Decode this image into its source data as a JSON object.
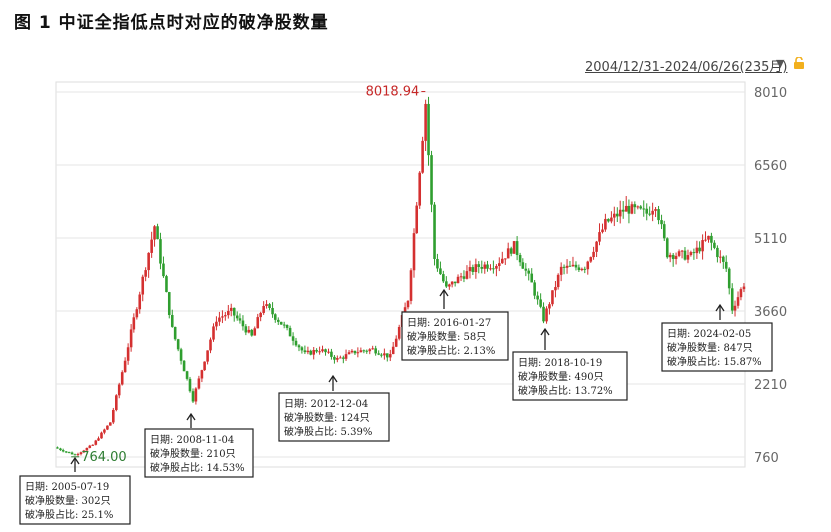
{
  "title": "图 1  中证全指低点时对应的破净股数量",
  "range_label": "2004/12/31-2024/06/26(235月)",
  "icons": {
    "dropdown": "triangle-down-icon",
    "lock": "lock-icon"
  },
  "colors": {
    "up": "#d43030",
    "down": "#2f9e2f",
    "grid": "#e6e6e6",
    "max_label": "#c62828",
    "min_label": "#2e7d32"
  },
  "chart_data": {
    "type": "candlestick",
    "title": "图 1  中证全指低点时对应的破净股数量",
    "x_range": [
      "2004-12-31",
      "2024-06-26"
    ],
    "ylim": [
      760,
      8010
    ],
    "yticks": [
      8010,
      6560,
      5110,
      3660,
      2210,
      760
    ],
    "grid": true,
    "max_label": "8018.94",
    "min_label": "764.00",
    "series": [
      {
        "x": [
          "2004-12",
          "2005-07",
          "2006-01",
          "2006-07",
          "2006-12",
          "2007-06",
          "2007-10",
          "2008-04",
          "2008-11",
          "2009-07",
          "2009-12",
          "2010-07",
          "2010-11",
          "2011-06",
          "2012-01",
          "2012-06",
          "2012-12",
          "2013-06",
          "2013-12",
          "2014-06",
          "2014-12",
          "2015-06",
          "2015-09",
          "2016-01",
          "2016-06",
          "2016-12",
          "2017-06",
          "2017-12",
          "2018-06",
          "2018-10",
          "2019-04",
          "2019-12",
          "2020-07",
          "2021-02",
          "2021-09",
          "2021-12",
          "2022-04",
          "2022-12",
          "2023-06",
          "2023-12",
          "2024-02",
          "2024-06"
        ],
        "y": [
          950,
          800,
          1000,
          1450,
          2700,
          4300,
          5350,
          3300,
          1900,
          3500,
          3650,
          3150,
          3800,
          3350,
          2800,
          2900,
          2700,
          2850,
          2900,
          2750,
          3900,
          7800,
          4700,
          4100,
          4350,
          4550,
          4600,
          4950,
          4200,
          3500,
          4500,
          4550,
          5400,
          5700,
          5600,
          5800,
          4800,
          4750,
          5100,
          4500,
          3700,
          4200
        ]
      }
    ],
    "annotations": [
      {
        "date_text": "日期:   2005-07-19",
        "count_text": "破净股数量:   302只",
        "ratio_text": "破净股占比:   25.1%"
      },
      {
        "date_text": "日期:   2008-11-04",
        "count_text": "破净股数量:   210只",
        "ratio_text": "破净股占比:   14.53%"
      },
      {
        "date_text": "日期:   2012-12-04",
        "count_text": "破净股数量:   124只",
        "ratio_text": "破净股占比:   5.39%"
      },
      {
        "date_text": "日期:   2016-01-27",
        "count_text": "破净股数量:   58只",
        "ratio_text": "破净股占比:   2.13%"
      },
      {
        "date_text": "日期:   2018-10-19",
        "count_text": "破净股数量:   490只",
        "ratio_text": "破净股占比:   13.72%"
      },
      {
        "date_text": "日期:   2024-02-05",
        "count_text": "破净股数量:   847只",
        "ratio_text": "破净股占比:   15.87%"
      }
    ]
  }
}
